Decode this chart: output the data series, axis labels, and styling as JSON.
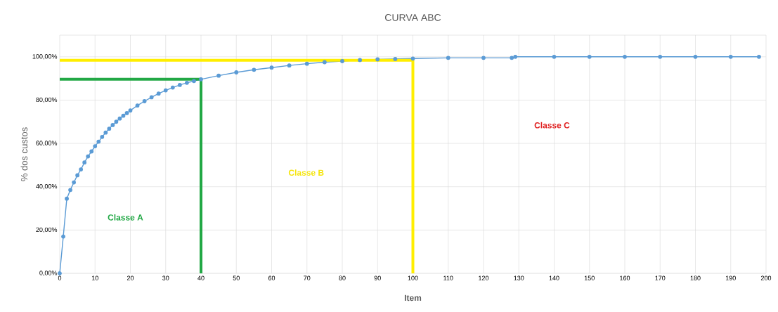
{
  "chart_data": {
    "type": "line",
    "title": "CURVA ABC",
    "xlabel": "Item",
    "ylabel": "% dos custos",
    "xlim": [
      0,
      200
    ],
    "xticks": [
      0,
      10,
      20,
      30,
      40,
      50,
      60,
      70,
      80,
      90,
      100,
      110,
      120,
      130,
      140,
      150,
      160,
      170,
      180,
      190,
      200
    ],
    "ylim": [
      0,
      110
    ],
    "yticks": [
      {
        "value": 0,
        "label": "0,00%"
      },
      {
        "value": 20,
        "label": "20,00%"
      },
      {
        "value": 40,
        "label": "40,00%"
      },
      {
        "value": 60,
        "label": "60,00%"
      },
      {
        "value": 80,
        "label": "80,00%"
      },
      {
        "value": 100,
        "label": "100,00%"
      },
      {
        "value": 110,
        "label": null
      }
    ],
    "grid": true,
    "marker": "circle",
    "line_style": "solid",
    "series": [
      {
        "color": "#5b9bd5",
        "x": [
          0,
          1,
          2,
          3,
          4,
          5,
          6,
          7,
          8,
          9,
          10,
          11,
          12,
          13,
          14,
          15,
          16,
          17,
          18,
          19,
          20,
          22,
          24,
          26,
          28,
          30,
          32,
          34,
          36,
          38,
          40,
          45,
          50,
          55,
          60,
          65,
          70,
          75,
          80,
          85,
          90,
          95,
          100,
          110,
          120,
          128,
          129,
          140,
          150,
          160,
          170,
          180,
          190,
          198
        ],
        "values": [
          0,
          17,
          34.5,
          38.5,
          42,
          45.3,
          48,
          51.2,
          54,
          56.3,
          58.7,
          60.8,
          63,
          65,
          66.8,
          68.5,
          70,
          71.5,
          72.8,
          74,
          75.2,
          77.5,
          79.5,
          81.3,
          83,
          84.5,
          85.8,
          87,
          88,
          88.8,
          89.6,
          91.3,
          92.8,
          94,
          95,
          96,
          96.8,
          97.5,
          98,
          98.5,
          98.8,
          99,
          99.2,
          99.5,
          99.5,
          99.5,
          100,
          100,
          100,
          100,
          100,
          100,
          100,
          100
        ]
      },
      {
        "type": "line",
        "marker": "none",
        "color": "#22a845",
        "x": [
          0,
          40,
          40
        ],
        "values": [
          89.6,
          89.6,
          0
        ]
      },
      {
        "type": "line",
        "marker": "none",
        "color": "#ffee00",
        "x": [
          0,
          100,
          100
        ],
        "values": [
          98.4,
          98.4,
          0
        ]
      }
    ],
    "annotations": [
      "Classe A",
      "Classe B",
      "Classe C"
    ]
  }
}
